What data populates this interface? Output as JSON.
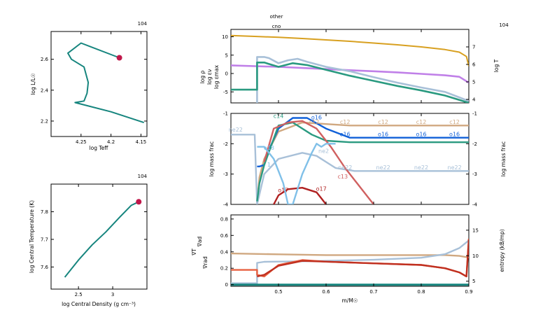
{
  "chart_data": [
    {
      "id": "hr",
      "type": "line",
      "corner_label": "104",
      "xlabel": "log Teff",
      "ylabel": "log L/L☉",
      "xlim": [
        4.3,
        4.14
      ],
      "ylim": [
        2.1,
        2.78
      ],
      "xticks": [
        4.25,
        4.2,
        4.15
      ],
      "xtick_labels": [
        "4.25",
        "4.2",
        "4.15"
      ],
      "yticks": [
        2.2,
        2.4,
        2.6
      ],
      "ytick_labels": [
        "2.2",
        "2.4",
        "2.6"
      ],
      "color": "#16857e",
      "marker_color": "#c0174a",
      "x": [
        4.228,
        4.218,
        4.24,
        4.252,
        4.21,
        4.203,
        4.205,
        4.23,
        4.238,
        4.19,
        4.155
      ],
      "y": [
        2.64,
        2.66,
        2.7,
        2.71,
        2.62,
        2.58,
        2.56,
        2.34,
        2.3,
        2.25,
        2.2
      ],
      "path_x": [
        4.186,
        4.25,
        4.272,
        4.266,
        4.245,
        4.238,
        4.24,
        4.245,
        4.26,
        4.2,
        4.145
      ],
      "path_y": [
        2.61,
        2.705,
        2.64,
        2.6,
        2.55,
        2.45,
        2.38,
        2.33,
        2.32,
        2.26,
        2.19
      ],
      "marker": [
        4.186,
        2.61
      ]
    },
    {
      "id": "rho_t",
      "type": "line",
      "corner_label": "104",
      "xlabel": "log Central Density (g cm⁻³)",
      "ylabel": "log Central Temperature (K)",
      "xlim": [
        2.1,
        3.5
      ],
      "ylim": [
        7.52,
        7.9
      ],
      "xticks": [
        2.5,
        3
      ],
      "xtick_labels": [
        "2.5",
        "3"
      ],
      "yticks": [
        7.6,
        7.7,
        7.8
      ],
      "ytick_labels": [
        "7.6",
        "7.7",
        "7.8"
      ],
      "color": "#16857e",
      "marker_color": "#c0174a",
      "x": [
        2.3,
        2.5,
        2.7,
        2.9,
        3.1,
        3.27,
        3.38
      ],
      "y": [
        7.563,
        7.625,
        7.68,
        7.727,
        7.78,
        7.823,
        7.836
      ],
      "marker": [
        3.38,
        7.836
      ]
    },
    {
      "id": "profile",
      "type": "line",
      "corner_label": "104",
      "top_labels": [
        "other",
        "cno"
      ],
      "ylabel_left": [
        "log ρ",
        "log εν",
        "log εmax"
      ],
      "ylabel_left_colors": [
        "#c080e8",
        "#2a9a80",
        "#a8c0d8"
      ],
      "ylabel_right": "log T",
      "ylabel_right_color": "#d8a020",
      "ylim_left": [
        -8,
        12
      ],
      "yticks_left": [
        10,
        5,
        0,
        -5
      ],
      "ytick_labels_left": [
        "10",
        "5",
        "0",
        "-5"
      ],
      "ylim_right": [
        3.8,
        8.0
      ],
      "yticks_right": [
        7,
        6,
        5,
        4
      ],
      "ytick_labels_right": [
        "7",
        "6",
        "5",
        "4"
      ],
      "xlim": [
        0.4,
        0.9
      ],
      "series": [
        {
          "key": "logT",
          "axis": "right",
          "color": "#d8a020",
          "x": [
            0.4,
            0.45,
            0.5,
            0.55,
            0.6,
            0.65,
            0.7,
            0.75,
            0.8,
            0.85,
            0.88,
            0.895,
            0.9
          ],
          "y": [
            7.65,
            7.6,
            7.55,
            7.48,
            7.4,
            7.32,
            7.22,
            7.12,
            7.0,
            6.85,
            6.7,
            6.45,
            5.9
          ]
        },
        {
          "key": "logRho",
          "axis": "left",
          "color": "#c080e8",
          "x": [
            0.4,
            0.45,
            0.5,
            0.55,
            0.6,
            0.65,
            0.7,
            0.75,
            0.8,
            0.85,
            0.88,
            0.9
          ],
          "y": [
            2.2,
            2.0,
            1.8,
            1.5,
            1.2,
            0.9,
            0.6,
            0.3,
            -0.1,
            -0.5,
            -0.9,
            -2.5
          ]
        },
        {
          "key": "logEpsMax",
          "axis": "left",
          "color": "#a8c0d8",
          "x": [
            0.455,
            0.455,
            0.47,
            0.48,
            0.5,
            0.52,
            0.54,
            0.56,
            0.6,
            0.65,
            0.7,
            0.75,
            0.8,
            0.85,
            0.88,
            0.9
          ],
          "y": [
            -8,
            4.5,
            4.5,
            4.2,
            2.8,
            3.6,
            4.0,
            3.2,
            1.8,
            0.6,
            -1.0,
            -2.5,
            -3.8,
            -5.0,
            -6.5,
            -7.5
          ]
        },
        {
          "key": "logEpsNu",
          "axis": "left",
          "color": "#2a9a80",
          "x": [
            0.4,
            0.455,
            0.455,
            0.47,
            0.5,
            0.53,
            0.56,
            0.6,
            0.65,
            0.7,
            0.75,
            0.8,
            0.85,
            0.88,
            0.9
          ],
          "y": [
            -4.4,
            -4.4,
            3.0,
            3.0,
            1.8,
            2.8,
            2.3,
            1.0,
            -0.6,
            -2.0,
            -3.4,
            -4.6,
            -6.0,
            -7.2,
            -8.0
          ]
        }
      ]
    },
    {
      "id": "abund",
      "type": "line",
      "ylabel_left": "log mass frac",
      "ylabel_right": "log mass frac",
      "ylim": [
        -4,
        -1
      ],
      "yticks": [
        -1,
        -2,
        -3,
        -4
      ],
      "ytick_labels": [
        "-1",
        "-2",
        "-3",
        "-4"
      ],
      "xlim": [
        0.4,
        0.9
      ],
      "series": [
        {
          "name": "c12",
          "color": "#d0a880",
          "x": [
            0.455,
            0.46,
            0.47,
            0.5,
            0.55,
            0.6,
            0.65,
            0.7,
            0.8,
            0.9
          ],
          "y": [
            -3.9,
            -3.1,
            -2.5,
            -1.6,
            -1.3,
            -1.35,
            -1.4,
            -1.4,
            -1.4,
            -1.4
          ]
        },
        {
          "name": "o16",
          "color": "#1060d8",
          "x": [
            0.455,
            0.46,
            0.47,
            0.48,
            0.5,
            0.53,
            0.56,
            0.6,
            0.65,
            0.7,
            0.8,
            0.9
          ],
          "y": [
            -2.75,
            -2.75,
            -2.7,
            -2.2,
            -1.5,
            -1.15,
            -1.15,
            -1.5,
            -1.8,
            -1.8,
            -1.8,
            -1.8
          ]
        },
        {
          "name": "ne22",
          "color": "#a8c0d8",
          "x": [
            0.4,
            0.45,
            0.455,
            0.47,
            0.5,
            0.55,
            0.58,
            0.62,
            0.66,
            0.7,
            0.8,
            0.9
          ],
          "y": [
            -1.7,
            -1.7,
            -4.0,
            -3.0,
            -2.5,
            -2.3,
            -2.4,
            -2.8,
            -2.9,
            -2.9,
            -2.9,
            -2.9
          ]
        },
        {
          "name": "n14",
          "color": "#2a9a80",
          "x": [
            0.455,
            0.46,
            0.47,
            0.5,
            0.53,
            0.57,
            0.6,
            0.65,
            0.7,
            0.8,
            0.9
          ],
          "y": [
            -3.9,
            -3.3,
            -2.7,
            -1.4,
            -1.3,
            -1.7,
            -1.9,
            -1.95,
            -1.95,
            -1.95,
            -1.95
          ]
        },
        {
          "name": "c13",
          "color": "#d06060",
          "x": [
            0.47,
            0.49,
            0.52,
            0.55,
            0.58,
            0.61,
            0.64,
            0.67,
            0.7
          ],
          "y": [
            -2.6,
            -1.5,
            -1.3,
            -1.25,
            -1.5,
            -2.1,
            -2.8,
            -3.4,
            -4.0
          ]
        },
        {
          "name": "o17",
          "color": "#b02020",
          "x": [
            0.49,
            0.5,
            0.52,
            0.55,
            0.58,
            0.59,
            0.6
          ],
          "y": [
            -4.0,
            -3.7,
            -3.5,
            -3.45,
            -3.6,
            -3.8,
            -4.0
          ]
        },
        {
          "name": "o18",
          "color": "#80c0e8",
          "x": [
            0.455,
            0.47,
            0.49,
            0.51,
            0.52,
            0.53,
            0.55,
            0.57,
            0.58,
            0.59,
            0.6,
            0.62
          ],
          "y": [
            -2.1,
            -2.1,
            -2.5,
            -3.3,
            -4.0,
            -4.0,
            -3.0,
            -2.3,
            -2.0,
            -2.1,
            -2.0,
            -2.0
          ]
        }
      ],
      "labels": [
        {
          "text": "ne22",
          "x": 0.41,
          "y": -1.6,
          "color": "#a8c0d8"
        },
        {
          "text": "c14",
          "x": 0.5,
          "y": -1.15,
          "color": "#2a9a80"
        },
        {
          "text": "o16",
          "x": 0.58,
          "y": -1.2,
          "color": "#1060d8"
        },
        {
          "text": "c12",
          "x": 0.575,
          "y": -1.35,
          "color": "#d0a880"
        },
        {
          "text": "c12",
          "x": 0.64,
          "y": -1.35,
          "color": "#d0a880"
        },
        {
          "text": "c12",
          "x": 0.72,
          "y": -1.35,
          "color": "#d0a880"
        },
        {
          "text": "c12",
          "x": 0.8,
          "y": -1.35,
          "color": "#d0a880"
        },
        {
          "text": "c12",
          "x": 0.87,
          "y": -1.35,
          "color": "#d0a880"
        },
        {
          "text": "o16",
          "x": 0.64,
          "y": -1.75,
          "color": "#1060d8"
        },
        {
          "text": "o16",
          "x": 0.72,
          "y": -1.75,
          "color": "#1060d8"
        },
        {
          "text": "o16",
          "x": 0.8,
          "y": -1.75,
          "color": "#1060d8"
        },
        {
          "text": "o16",
          "x": 0.87,
          "y": -1.75,
          "color": "#1060d8"
        },
        {
          "text": "ne22",
          "x": 0.64,
          "y": -2.85,
          "color": "#a8c0d8"
        },
        {
          "text": "ne22",
          "x": 0.72,
          "y": -2.85,
          "color": "#a8c0d8"
        },
        {
          "text": "ne22",
          "x": 0.8,
          "y": -2.85,
          "color": "#a8c0d8"
        },
        {
          "text": "ne22",
          "x": 0.87,
          "y": -2.85,
          "color": "#a8c0d8"
        },
        {
          "text": "c13",
          "x": 0.635,
          "y": -3.15,
          "color": "#d06060"
        },
        {
          "text": "o17",
          "x": 0.51,
          "y": -3.6,
          "color": "#b02020"
        },
        {
          "text": "o17",
          "x": 0.59,
          "y": -3.55,
          "color": "#b02020"
        },
        {
          "text": "ne2",
          "x": 0.595,
          "y": -2.3,
          "color": "#a8c0d8"
        },
        {
          "text": "o18",
          "x": 0.48,
          "y": -2.2,
          "color": "#80c0e8"
        },
        {
          "text": "1",
          "x": 0.48,
          "y": -2.75,
          "color": "#80c0e8"
        }
      ]
    },
    {
      "id": "grad",
      "type": "line",
      "ylabel_left": [
        "∇ad",
        "∇T",
        "∇rad"
      ],
      "ylabel_left_colors": [
        "#d09070",
        "#c03020",
        "#e86040"
      ],
      "ylabel_right": "entropy (kB/mp)",
      "xlabel": "m/M☉",
      "xlim": [
        0.4,
        0.9
      ],
      "xticks": [
        0.5,
        0.6,
        0.7,
        0.8,
        0.9
      ],
      "xtick_labels": [
        "0.5",
        "0.6",
        "0.7",
        "0.8",
        "0.9"
      ],
      "ylim_left": [
        -0.02,
        0.85
      ],
      "yticks_left": [
        0.8,
        0.6,
        0.4,
        0.2,
        0
      ],
      "ytick_labels_left": [
        "0.8",
        "0.6",
        "0.4",
        "0.2",
        "0"
      ],
      "ylim_right": [
        4,
        18
      ],
      "yticks_right": [
        15,
        10,
        5
      ],
      "ytick_labels_right": [
        "15",
        "10",
        "5"
      ],
      "series": [
        {
          "key": "grada",
          "axis": "left",
          "color": "#d0a880",
          "x": [
            0.4,
            0.5,
            0.6,
            0.7,
            0.8,
            0.85,
            0.88,
            0.9
          ],
          "y": [
            0.38,
            0.37,
            0.36,
            0.36,
            0.36,
            0.36,
            0.35,
            0.33
          ]
        },
        {
          "key": "entropy",
          "axis": "right",
          "color": "#a8c0d8",
          "x": [
            0.4,
            0.455,
            0.455,
            0.47,
            0.55,
            0.6,
            0.7,
            0.8,
            0.85,
            0.88,
            0.9
          ],
          "y": [
            4.6,
            4.6,
            8.6,
            8.8,
            8.9,
            9.0,
            9.2,
            9.6,
            10.3,
            11.5,
            13.0
          ]
        },
        {
          "key": "gradr",
          "axis": "left",
          "color": "#e86040",
          "x": [
            0.4,
            0.455,
            0.455,
            0.47,
            0.5,
            0.55,
            0.6,
            0.65,
            0.7,
            0.8,
            0.85,
            0.88,
            0.895,
            0.9
          ],
          "y": [
            0.18,
            0.18,
            0.12,
            0.1,
            0.24,
            0.3,
            0.28,
            0.27,
            0.26,
            0.24,
            0.2,
            0.15,
            0.1,
            0.56
          ]
        },
        {
          "key": "gradT",
          "axis": "left",
          "color": "#c03020",
          "x": [
            0.455,
            0.47,
            0.5,
            0.55,
            0.6,
            0.65,
            0.7,
            0.8,
            0.85,
            0.88,
            0.895,
            0.9
          ],
          "y": [
            0.1,
            0.12,
            0.23,
            0.29,
            0.28,
            0.27,
            0.26,
            0.24,
            0.2,
            0.15,
            0.1,
            0.55
          ]
        },
        {
          "key": "green_base",
          "axis": "left",
          "color": "#16857e",
          "x": [
            0.4,
            0.9
          ],
          "y": [
            0.0,
            0.0
          ]
        }
      ]
    }
  ]
}
